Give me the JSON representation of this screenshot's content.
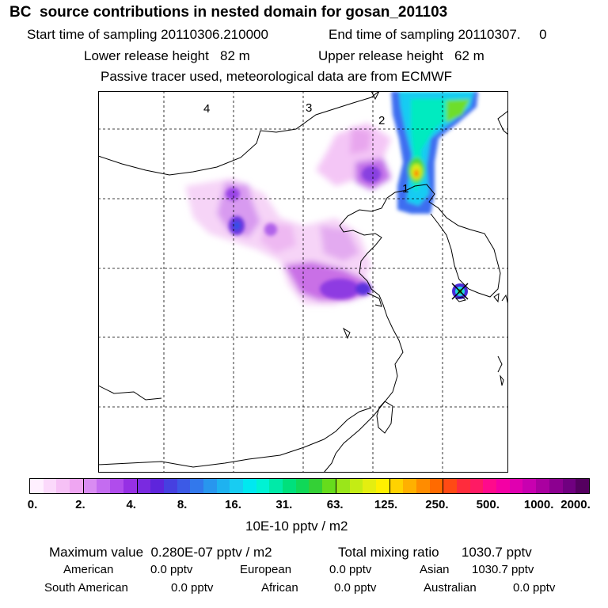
{
  "header": {
    "title": "BC  source contributions in nested domain for gosan_201103",
    "start_label": "Start time of sampling 20110306.210000",
    "end_label": "End time of sampling 20110307.     0",
    "lower_release": "Lower release height   82 m",
    "upper_release": "Upper release height   62 m",
    "note": "Passive tracer used, meteorological data are from ECMWF"
  },
  "map": {
    "grid_labels": [
      "4",
      "3",
      "2",
      "1"
    ],
    "receptor_marker": "receptor-cross"
  },
  "colorbar": {
    "tick_labels": [
      "0.",
      "2.",
      "4.",
      "8.",
      "16.",
      "31.",
      "63.",
      "125.",
      "250.",
      "500.",
      "1000.",
      "2000."
    ],
    "colors": [
      "#fff0ff",
      "#fbd9fb",
      "#f6c1f6",
      "#efa6f2",
      "#d98cf2",
      "#c46cf0",
      "#b04cec",
      "#9630e4",
      "#7a2ae0",
      "#5e25dc",
      "#4640e0",
      "#3c5ae6",
      "#3278ec",
      "#2896ee",
      "#1eb2f0",
      "#18ccf2",
      "#00e8f0",
      "#00f2d4",
      "#00eaa8",
      "#00e07c",
      "#10d858",
      "#34d036",
      "#66dc1c",
      "#9ae61a",
      "#c4ec14",
      "#e4ee10",
      "#fff000",
      "#ffd200",
      "#ffb000",
      "#ff8c00",
      "#ff6a00",
      "#ff4a14",
      "#ff2c3c",
      "#ff1a64",
      "#ff0a8c",
      "#f400a4",
      "#e000b0",
      "#c800b0",
      "#aa00a0",
      "#8c0090",
      "#700080",
      "#550060"
    ],
    "unit": "10E-10 pptv / m2"
  },
  "summary": {
    "maximum": "Maximum value  0.280E-07 pptv / m2",
    "total": "Total mixing ratio      1030.7 pptv",
    "american_label": "American",
    "american_value": "0.0 pptv",
    "european_label": "European",
    "european_value": "0.0 pptv",
    "asian_label": "Asian",
    "asian_value": "1030.7 pptv",
    "south_american_label": "South American",
    "south_american_value": "0.0 pptv",
    "african_label": "African",
    "african_value": "0.0 pptv",
    "australian_label": "Australian",
    "australian_value": "0.0 pptv"
  }
}
